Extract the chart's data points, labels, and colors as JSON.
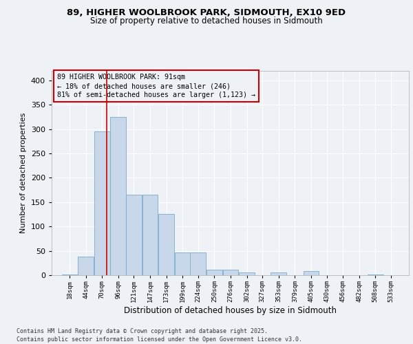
{
  "title1": "89, HIGHER WOOLBROOK PARK, SIDMOUTH, EX10 9ED",
  "title2": "Size of property relative to detached houses in Sidmouth",
  "xlabel": "Distribution of detached houses by size in Sidmouth",
  "ylabel": "Number of detached properties",
  "annotation_line1": "89 HIGHER WOOLBROOK PARK: 91sqm",
  "annotation_line2": "← 18% of detached houses are smaller (246)",
  "annotation_line3": "81% of semi-detached houses are larger (1,123) →",
  "bar_color": "#c8d8ea",
  "bar_edge_color": "#7aaac8",
  "vline_color": "#cc0000",
  "vline_x_index": 3,
  "annotation_box_color": "#cc0000",
  "categories": [
    "18sqm",
    "44sqm",
    "70sqm",
    "96sqm",
    "121sqm",
    "147sqm",
    "173sqm",
    "199sqm",
    "224sqm",
    "250sqm",
    "276sqm",
    "302sqm",
    "327sqm",
    "353sqm",
    "379sqm",
    "405sqm",
    "430sqm",
    "456sqm",
    "482sqm",
    "508sqm",
    "533sqm"
  ],
  "bin_edges": [
    18,
    44,
    70,
    96,
    121,
    147,
    173,
    199,
    224,
    250,
    276,
    302,
    327,
    353,
    379,
    405,
    430,
    456,
    482,
    508,
    533
  ],
  "values": [
    1,
    38,
    295,
    325,
    165,
    165,
    125,
    47,
    47,
    12,
    12,
    5,
    0,
    5,
    0,
    8,
    0,
    0,
    0,
    2,
    0
  ],
  "ylim": [
    0,
    420
  ],
  "yticks": [
    0,
    50,
    100,
    150,
    200,
    250,
    300,
    350,
    400
  ],
  "bg_color": "#eef2f7",
  "grid_color": "#ffffff",
  "footer1": "Contains HM Land Registry data © Crown copyright and database right 2025.",
  "footer2": "Contains public sector information licensed under the Open Government Licence v3.0."
}
